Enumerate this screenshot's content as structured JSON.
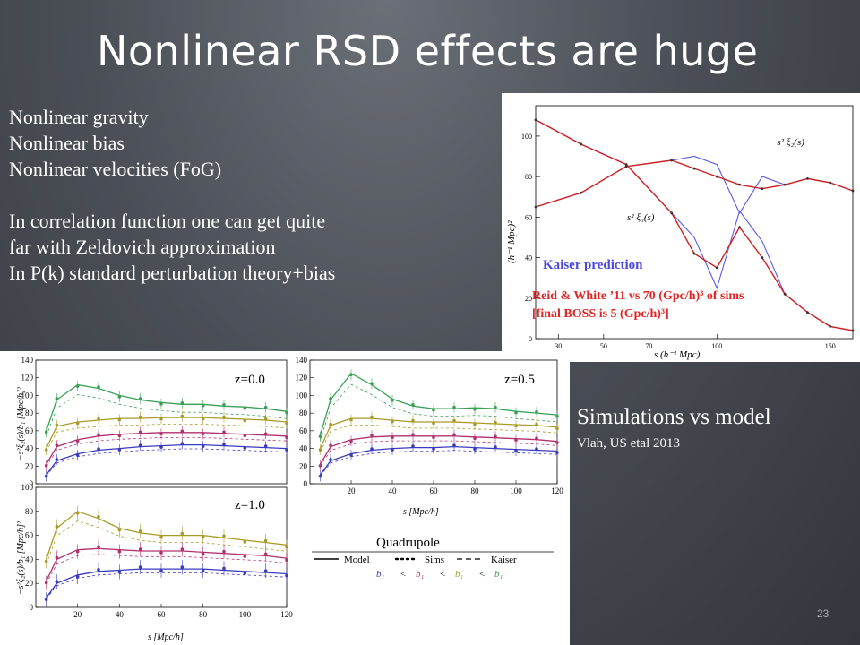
{
  "slide": {
    "title": "Nonlinear RSD effects are huge",
    "bullets": [
      "Nonlinear gravity",
      "Nonlinear bias",
      "Nonlinear velocities (FoG)",
      "",
      "In correlation function one can get quite",
      "far with Zeldovich approximation",
      "In P(k) standard perturbation theory+bias"
    ],
    "caption_title": "Simulations vs model",
    "caption_cite": "Vlah, US etal 2013",
    "slide_number": "23"
  },
  "top_figure": {
    "xlabel": "s (h⁻¹ Mpc)",
    "ylabel": "(h⁻¹ Mpc)²",
    "curve_label_quad": "−s² ξ₂(s)",
    "curve_label_mono": "s² ξ₀(s)",
    "legend_kaiser": "Kaiser prediction",
    "legend_reid_1": "Reid & White ’11 vs 70 (Gpc/h)³ of sims",
    "legend_reid_2": "[final BOSS is 5 (Gpc/h)³]",
    "colors": {
      "kaiser": "#5a5ae8",
      "model": "#d22020"
    }
  },
  "bottom_figure": {
    "ylabel": "−s²ξ₂(s)/b₁  [Mpc/h]²",
    "xlabel": "s  [Mpc/h]",
    "legend_title": "Quadrupole",
    "legend_model": "Model",
    "legend_sims": "Sims",
    "legend_kaiser": "Kaiser",
    "bias_label": "b₁",
    "less_than": "<",
    "panel_z0": "z=0.0",
    "panel_z05": "z=0.5",
    "panel_z1": "z=1.0",
    "colors": {
      "green": "#3aa055",
      "olive": "#a89a28",
      "magenta": "#b0306e",
      "blue": "#3a3ac0"
    }
  },
  "chart_data": [
    {
      "type": "line",
      "x": [
        20,
        40,
        60,
        80,
        90,
        100,
        110,
        120,
        130,
        140,
        150,
        160
      ],
      "series": [
        {
          "values": [
            108,
            96,
            86,
            62,
            42,
            35,
            55,
            40,
            22,
            13,
            6,
            4
          ]
        },
        {
          "values": [
            65,
            72,
            85,
            88,
            84,
            80,
            76,
            74,
            76,
            79,
            77,
            73
          ]
        }
      ],
      "xlim": [
        20,
        160
      ],
      "ylim": [
        0,
        115
      ],
      "xticks": [
        30,
        50,
        70,
        100,
        150
      ],
      "yticks": [
        0,
        20,
        40,
        60,
        80,
        100
      ]
    },
    {
      "type": "line",
      "panel": "z=0.0",
      "x": [
        5,
        10,
        20,
        30,
        40,
        50,
        60,
        70,
        80,
        90,
        100,
        110,
        120
      ],
      "series": [
        {
          "values": [
            60,
            95,
            112,
            108,
            100,
            95,
            92,
            90,
            90,
            88,
            87,
            85,
            82
          ]
        },
        {
          "values": [
            40,
            65,
            70,
            72,
            74,
            74,
            75,
            75,
            75,
            74,
            73,
            72,
            70
          ]
        },
        {
          "values": [
            22,
            42,
            50,
            54,
            56,
            57,
            58,
            58,
            58,
            57,
            56,
            55,
            54
          ]
        },
        {
          "values": [
            10,
            26,
            34,
            38,
            40,
            42,
            43,
            44,
            44,
            43,
            42,
            41,
            40
          ]
        }
      ],
      "xlim": [
        0,
        120
      ],
      "ylim": [
        0,
        140
      ],
      "yticks": [
        0,
        20,
        40,
        60,
        80,
        100,
        120,
        140
      ]
    },
    {
      "type": "line",
      "panel": "z=0.5",
      "x": [
        5,
        10,
        20,
        30,
        40,
        50,
        60,
        70,
        80,
        90,
        100,
        110,
        120
      ],
      "series": [
        {
          "values": [
            55,
            95,
            125,
            112,
            96,
            88,
            85,
            85,
            86,
            85,
            82,
            80,
            78
          ]
        },
        {
          "values": [
            40,
            66,
            74,
            74,
            72,
            70,
            70,
            70,
            69,
            68,
            67,
            66,
            64
          ]
        },
        {
          "values": [
            22,
            42,
            50,
            53,
            54,
            54,
            54,
            54,
            53,
            52,
            51,
            50,
            48
          ]
        },
        {
          "values": [
            10,
            26,
            34,
            38,
            40,
            41,
            41,
            42,
            41,
            40,
            39,
            38,
            37
          ]
        }
      ],
      "xlim": [
        0,
        120
      ],
      "ylim": [
        0,
        140
      ],
      "xticks": [
        20,
        40,
        60,
        80,
        100,
        120
      ],
      "yticks": [
        0,
        20,
        40,
        60,
        80,
        100,
        120,
        140
      ]
    },
    {
      "type": "line",
      "panel": "z=1.0",
      "x": [
        5,
        10,
        20,
        30,
        40,
        50,
        60,
        70,
        80,
        90,
        100,
        110,
        120
      ],
      "series": [
        {
          "values": [
            40,
            66,
            80,
            74,
            66,
            62,
            60,
            60,
            60,
            58,
            56,
            54,
            52
          ]
        },
        {
          "values": [
            22,
            40,
            48,
            49,
            48,
            47,
            47,
            47,
            46,
            45,
            44,
            43,
            41
          ]
        },
        {
          "values": [
            8,
            20,
            27,
            30,
            31,
            32,
            32,
            32,
            32,
            31,
            30,
            29,
            28
          ]
        }
      ],
      "xlim": [
        0,
        120
      ],
      "ylim": [
        0,
        100
      ],
      "xticks": [
        20,
        40,
        60,
        80,
        100,
        120
      ],
      "yticks": [
        0,
        20,
        40,
        60,
        80,
        100
      ]
    }
  ]
}
